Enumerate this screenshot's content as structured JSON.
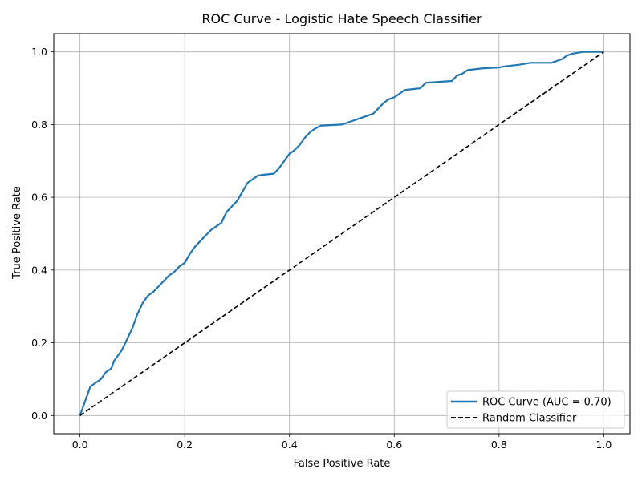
{
  "chart_data": {
    "type": "line",
    "title": "ROC Curve - Logistic Hate Speech Classifier",
    "xlabel": "False Positive Rate",
    "ylabel": "True Positive Rate",
    "xlim": [
      -0.05,
      1.05
    ],
    "ylim": [
      -0.05,
      1.05
    ],
    "xticks": [
      "0.0",
      "0.2",
      "0.4",
      "0.6",
      "0.8",
      "1.0"
    ],
    "yticks": [
      "0.0",
      "0.2",
      "0.4",
      "0.6",
      "0.8",
      "1.0"
    ],
    "grid": true,
    "legend_position": "lower-right",
    "series": [
      {
        "name": "ROC Curve (AUC = 0.70)",
        "color": "#1f77b4",
        "style": "solid",
        "x": [
          0.0,
          0.005,
          0.01,
          0.015,
          0.02,
          0.03,
          0.04,
          0.05,
          0.06,
          0.065,
          0.07,
          0.08,
          0.09,
          0.1,
          0.11,
          0.12,
          0.13,
          0.14,
          0.15,
          0.16,
          0.17,
          0.18,
          0.19,
          0.2,
          0.21,
          0.22,
          0.23,
          0.24,
          0.25,
          0.26,
          0.27,
          0.28,
          0.29,
          0.3,
          0.31,
          0.32,
          0.33,
          0.34,
          0.35,
          0.37,
          0.38,
          0.39,
          0.4,
          0.41,
          0.42,
          0.43,
          0.44,
          0.45,
          0.46,
          0.5,
          0.52,
          0.54,
          0.56,
          0.57,
          0.58,
          0.59,
          0.6,
          0.61,
          0.62,
          0.65,
          0.66,
          0.71,
          0.72,
          0.73,
          0.74,
          0.77,
          0.8,
          0.81,
          0.84,
          0.86,
          0.9,
          0.91,
          0.92,
          0.93,
          0.94,
          0.96,
          1.0
        ],
        "y": [
          0.0,
          0.02,
          0.04,
          0.06,
          0.08,
          0.09,
          0.1,
          0.12,
          0.13,
          0.15,
          0.16,
          0.18,
          0.21,
          0.24,
          0.28,
          0.31,
          0.33,
          0.34,
          0.355,
          0.37,
          0.385,
          0.395,
          0.41,
          0.42,
          0.445,
          0.465,
          0.48,
          0.495,
          0.51,
          0.52,
          0.53,
          0.56,
          0.575,
          0.59,
          0.615,
          0.64,
          0.65,
          0.66,
          0.662,
          0.665,
          0.68,
          0.7,
          0.72,
          0.73,
          0.745,
          0.765,
          0.78,
          0.79,
          0.797,
          0.8,
          0.81,
          0.82,
          0.83,
          0.845,
          0.86,
          0.87,
          0.875,
          0.885,
          0.895,
          0.9,
          0.915,
          0.92,
          0.935,
          0.94,
          0.95,
          0.955,
          0.957,
          0.96,
          0.965,
          0.97,
          0.97,
          0.975,
          0.98,
          0.99,
          0.995,
          1.0,
          1.0
        ]
      },
      {
        "name": "Random Classifier",
        "color": "#000000",
        "style": "dashed",
        "x": [
          0.0,
          1.0
        ],
        "y": [
          0.0,
          1.0
        ]
      }
    ]
  }
}
